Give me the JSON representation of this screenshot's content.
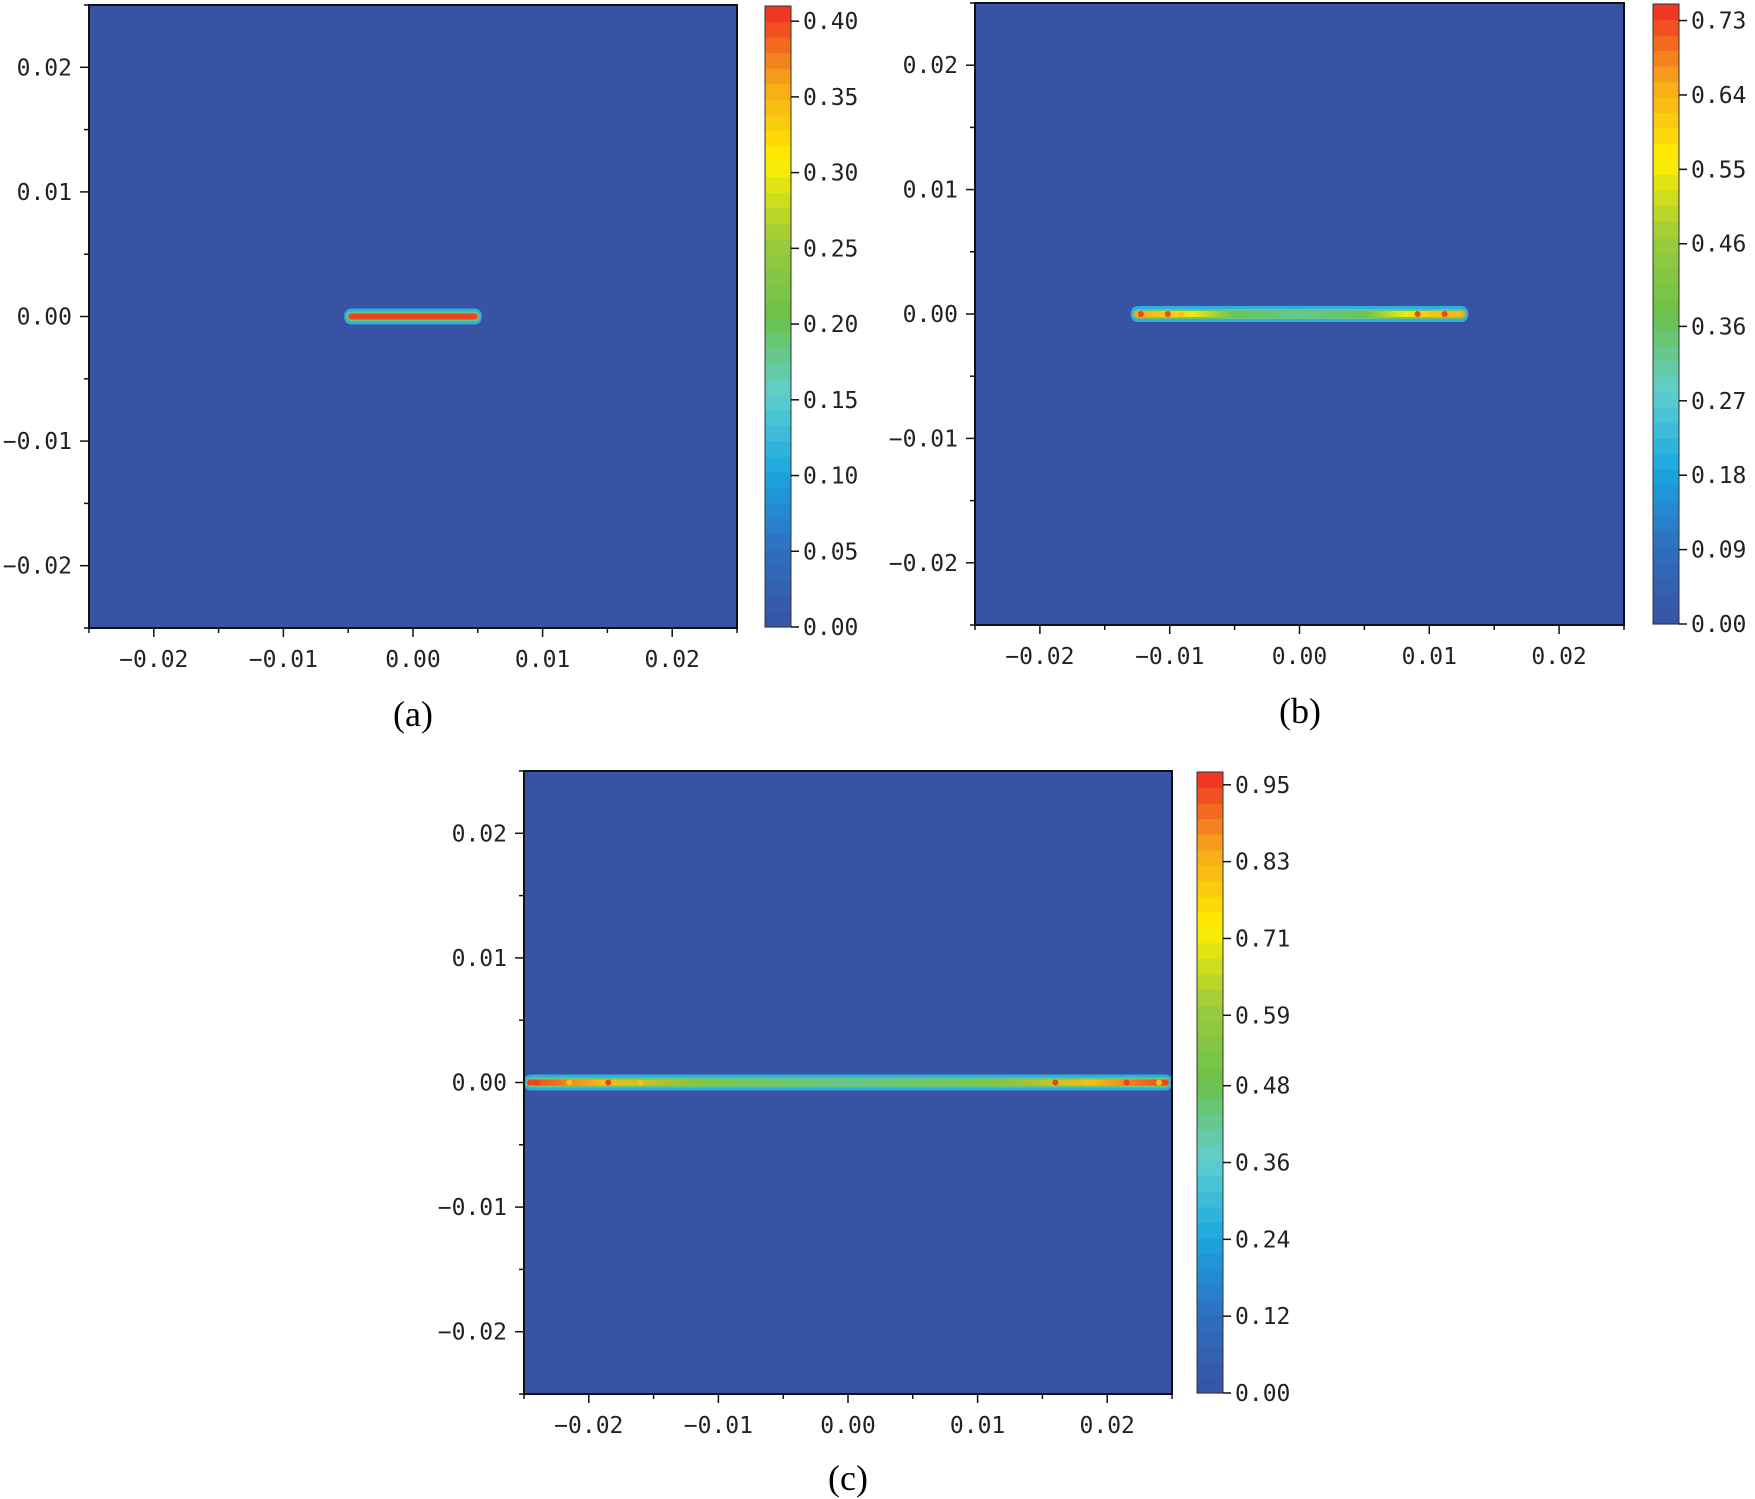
{
  "chart_data": [
    {
      "type": "heatmap",
      "caption": "(a)",
      "xlim": [
        -0.025,
        0.025
      ],
      "ylim": [
        -0.025,
        0.025
      ],
      "x_ticks": [
        -0.02,
        -0.01,
        0.0,
        0.01,
        0.02
      ],
      "x_tick_labels": [
        "−0.02",
        "−0.01",
        "0.00",
        "0.01",
        "0.02"
      ],
      "y_ticks": [
        0.02,
        0.01,
        0.0,
        -0.01,
        -0.02
      ],
      "y_tick_labels": [
        "0.02",
        "0.01",
        "0.00",
        "−0.01",
        "−0.02"
      ],
      "colorbar": {
        "min": 0.0,
        "max": 0.41,
        "ticks": [
          0.4,
          0.35,
          0.3,
          0.25,
          0.2,
          0.15,
          0.1,
          0.05,
          0.0
        ],
        "tick_labels": [
          "0.40",
          "0.35",
          "0.30",
          "0.25",
          "0.20",
          "0.15",
          "0.10",
          "0.05",
          "0.00"
        ]
      },
      "crack": {
        "y": 0.0,
        "x_start": -0.0053,
        "x_end": 0.0053,
        "peak_value": 0.4,
        "pattern": "solid"
      }
    },
    {
      "type": "heatmap",
      "caption": "(b)",
      "xlim": [
        -0.025,
        0.025
      ],
      "ylim": [
        -0.025,
        0.025
      ],
      "x_ticks": [
        -0.02,
        -0.01,
        0.0,
        0.01,
        0.02
      ],
      "x_tick_labels": [
        "−0.02",
        "−0.01",
        "0.00",
        "0.01",
        "0.02"
      ],
      "y_ticks": [
        0.02,
        0.01,
        0.0,
        -0.01,
        -0.02
      ],
      "y_tick_labels": [
        "0.02",
        "0.01",
        "0.00",
        "−0.01",
        "−0.02"
      ],
      "colorbar": {
        "min": 0.0,
        "max": 0.75,
        "ticks": [
          0.73,
          0.64,
          0.55,
          0.46,
          0.36,
          0.27,
          0.18,
          0.09,
          0.0
        ],
        "tick_labels": [
          "0.73",
          "0.64",
          "0.55",
          "0.46",
          "0.36",
          "0.27",
          "0.18",
          "0.09",
          "0.00"
        ]
      },
      "crack": {
        "y": 0.0,
        "x_start": -0.013,
        "x_end": 0.013,
        "peak_value": 0.73,
        "pattern": "tips"
      }
    },
    {
      "type": "heatmap",
      "caption": "(c)",
      "xlim": [
        -0.025,
        0.025
      ],
      "ylim": [
        -0.025,
        0.025
      ],
      "x_ticks": [
        -0.02,
        -0.01,
        0.0,
        0.01,
        0.02
      ],
      "x_tick_labels": [
        "−0.02",
        "−0.01",
        "0.00",
        "0.01",
        "0.02"
      ],
      "y_ticks": [
        0.02,
        0.01,
        0.0,
        -0.01,
        -0.02
      ],
      "y_tick_labels": [
        "0.02",
        "0.01",
        "0.00",
        "−0.01",
        "−0.02"
      ],
      "colorbar": {
        "min": 0.0,
        "max": 0.97,
        "ticks": [
          0.95,
          0.83,
          0.71,
          0.59,
          0.48,
          0.36,
          0.24,
          0.12,
          0.0
        ],
        "tick_labels": [
          "0.95",
          "0.83",
          "0.71",
          "0.59",
          "0.48",
          "0.36",
          "0.24",
          "0.12",
          "0.00"
        ]
      },
      "crack": {
        "y": 0.0,
        "x_start": -0.025,
        "x_end": 0.025,
        "peak_value": 0.95,
        "pattern": "edges"
      }
    }
  ],
  "colors": {
    "background_field": "#3953a4",
    "colormap": [
      "#3953a4",
      "#2f6fc0",
      "#1aa7e0",
      "#5fcfcf",
      "#6cc04a",
      "#9ccc3b",
      "#ffee00",
      "#f7a81b",
      "#ee2a24"
    ]
  }
}
